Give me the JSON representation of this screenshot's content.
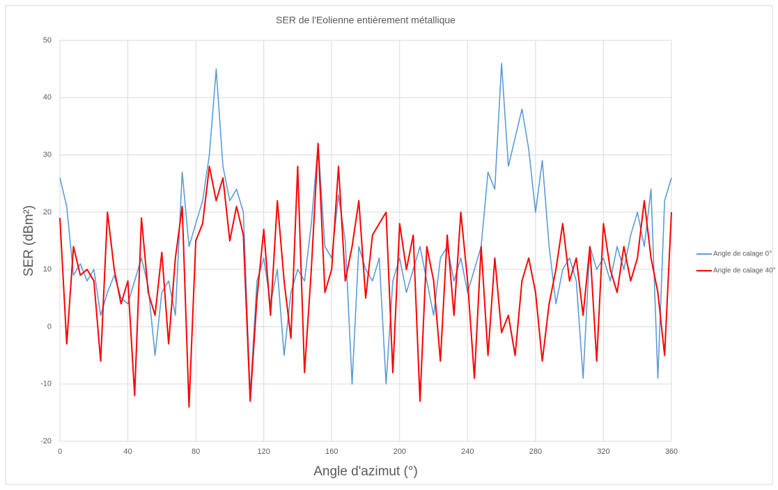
{
  "chart_data": {
    "type": "line",
    "title": "SER de l'Eolienne entièrement métallique",
    "x_label": "Angle d'azimut (°)",
    "y_label": "SER (dBm²)",
    "x": [
      0,
      4,
      8,
      12,
      16,
      20,
      24,
      28,
      32,
      36,
      40,
      44,
      48,
      52,
      56,
      60,
      64,
      68,
      72,
      76,
      80,
      84,
      88,
      92,
      96,
      100,
      104,
      108,
      112,
      116,
      120,
      124,
      128,
      132,
      136,
      140,
      144,
      148,
      152,
      156,
      160,
      164,
      168,
      172,
      176,
      180,
      184,
      188,
      192,
      196,
      200,
      204,
      208,
      212,
      216,
      220,
      224,
      228,
      232,
      236,
      240,
      244,
      248,
      252,
      256,
      260,
      264,
      268,
      272,
      276,
      280,
      284,
      288,
      292,
      296,
      300,
      304,
      308,
      312,
      316,
      320,
      324,
      328,
      332,
      336,
      340,
      344,
      348,
      352,
      356,
      360
    ],
    "series": [
      {
        "name": "Angle de calage 0°",
        "color": "#5b9bd5",
        "values": [
          26,
          21,
          9,
          11,
          8,
          10,
          2,
          6,
          9,
          5,
          4,
          8,
          12,
          7,
          -5,
          6,
          8,
          2,
          27,
          14,
          18,
          22,
          30,
          45,
          28,
          22,
          24,
          20,
          -12,
          8,
          12,
          4,
          10,
          -5,
          6,
          10,
          8,
          18,
          32,
          14,
          12,
          23,
          15,
          -10,
          14,
          10,
          8,
          12,
          -10,
          8,
          12,
          6,
          10,
          14,
          8,
          2,
          12,
          14,
          8,
          12,
          6,
          10,
          14,
          27,
          24,
          46,
          28,
          33,
          38,
          31,
          20,
          29,
          14,
          4,
          10,
          12,
          8,
          -9,
          14,
          10,
          12,
          8,
          14,
          10,
          16,
          20,
          14,
          24,
          -9,
          22,
          26
        ]
      },
      {
        "name": "Angle de calage 40°",
        "color": "#ff0000",
        "values": [
          19,
          -3,
          14,
          9,
          10,
          8,
          -6,
          20,
          10,
          4,
          8,
          -12,
          19,
          6,
          2,
          13,
          -3,
          12,
          21,
          -14,
          15,
          18,
          28,
          22,
          26,
          15,
          21,
          16,
          -13,
          5,
          17,
          2,
          22,
          8,
          -2,
          28,
          -8,
          10,
          32,
          6,
          10,
          28,
          8,
          14,
          22,
          5,
          16,
          18,
          20,
          -8,
          18,
          10,
          16,
          -13,
          14,
          8,
          -6,
          16,
          2,
          20,
          8,
          -9,
          14,
          -5,
          12,
          -1,
          2,
          -5,
          8,
          12,
          6,
          -6,
          4,
          10,
          18,
          8,
          12,
          2,
          14,
          -6,
          18,
          10,
          6,
          14,
          8,
          12,
          22,
          12,
          6,
          -5,
          20
        ]
      }
    ],
    "xlim": [
      0,
      360
    ],
    "xticks": [
      0,
      40,
      80,
      120,
      160,
      200,
      240,
      280,
      320,
      360
    ],
    "ylim": [
      -20,
      50
    ],
    "yticks": [
      -20,
      -10,
      0,
      10,
      20,
      30,
      40,
      50
    ],
    "grid": true,
    "legend": "right"
  }
}
